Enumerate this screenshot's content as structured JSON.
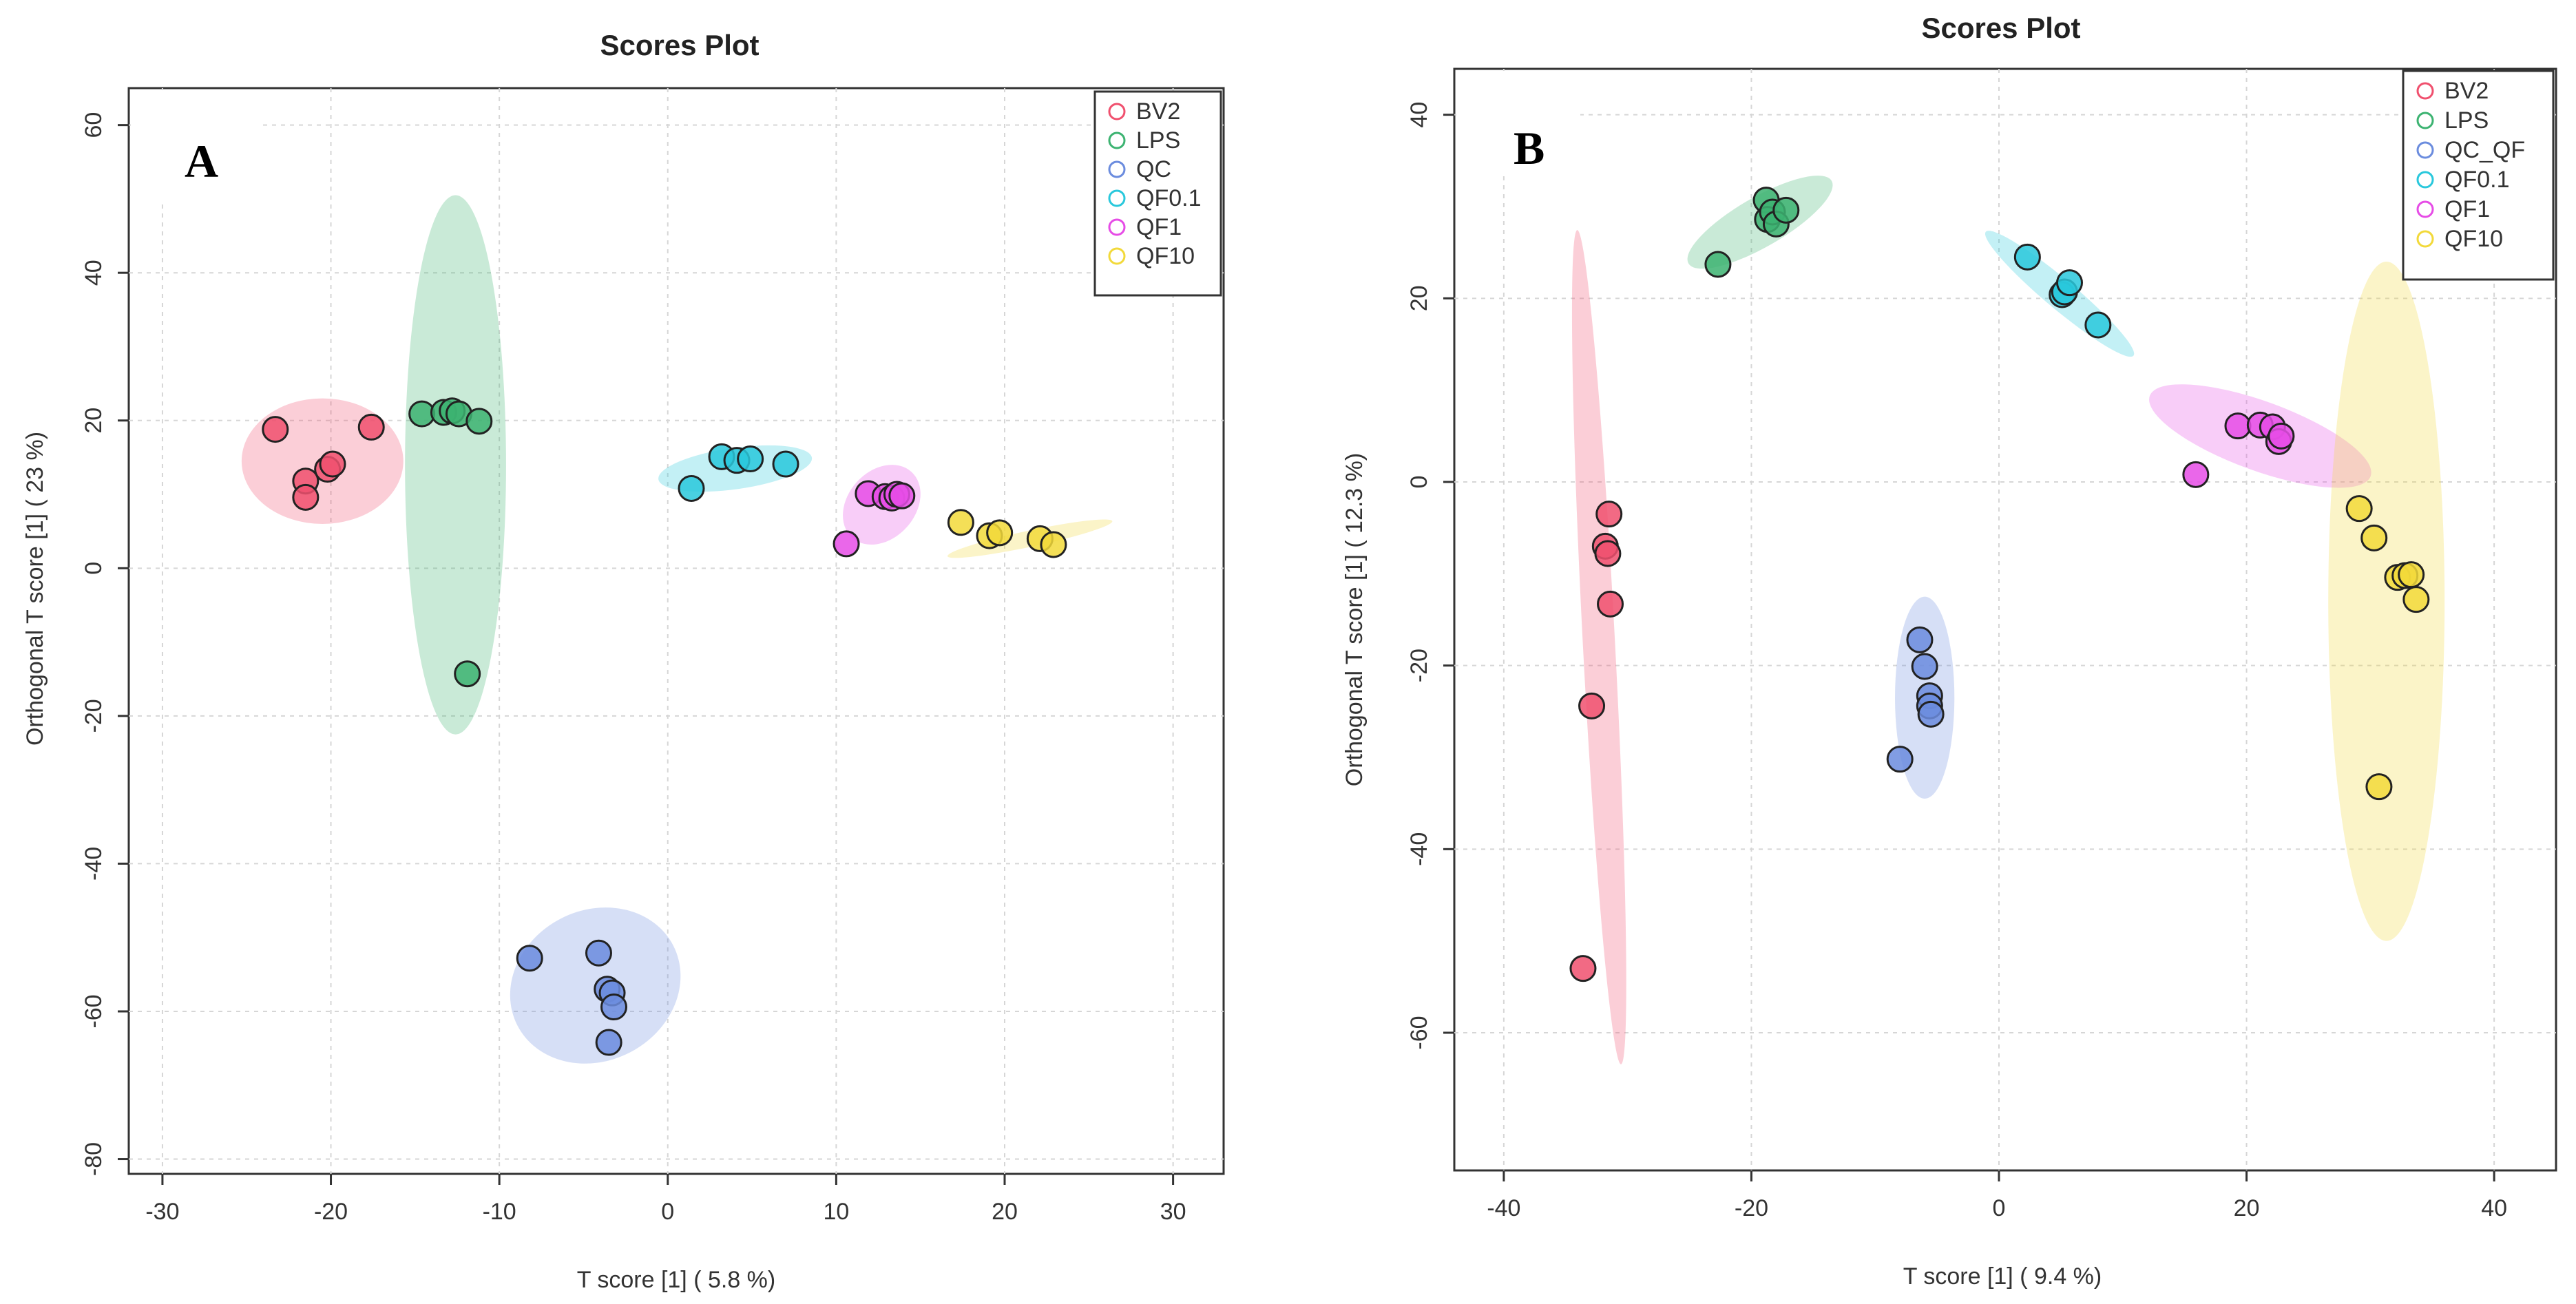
{
  "chart_data": [
    {
      "type": "scatter",
      "panel_label": "A",
      "title": "Scores Plot",
      "xlabel": "T score [1] ( 5.8 %)",
      "ylabel": "Orthogonal T score [1] ( 23 %)",
      "xlim": [
        -32,
        33
      ],
      "ylim": [
        -82,
        65
      ],
      "xticks": [
        -30,
        -20,
        -10,
        0,
        10,
        20,
        30
      ],
      "yticks": [
        60,
        40,
        20,
        0,
        -20,
        -40,
        -60,
        -80
      ],
      "grid": true,
      "legend": "top-right",
      "series": [
        {
          "name": "BV2",
          "color": "#f0506e",
          "points": [
            [
              -23.3,
              18.8
            ],
            [
              -21.5,
              11.8
            ],
            [
              -21.5,
              9.6
            ],
            [
              -20.2,
              13.4
            ],
            [
              -19.9,
              14.1
            ],
            [
              -17.6,
              19.1
            ]
          ],
          "ellipse": {
            "cx": -20.5,
            "cy": 14.5,
            "rx": 4.8,
            "ry": 8.5,
            "angle": 0
          }
        },
        {
          "name": "LPS",
          "color": "#3cb371",
          "points": [
            [
              -14.6,
              20.9
            ],
            [
              -13.3,
              21.1
            ],
            [
              -12.8,
              21.3
            ],
            [
              -12.4,
              20.9
            ],
            [
              -11.2,
              19.9
            ],
            [
              -11.9,
              -14.3
            ]
          ],
          "ellipse": {
            "cx": -12.6,
            "cy": 14.0,
            "rx": 3.0,
            "ry": 36.5,
            "angle": 0
          }
        },
        {
          "name": "QC",
          "color": "#6b8cde",
          "points": [
            [
              -8.2,
              -52.8
            ],
            [
              -4.1,
              -52.1
            ],
            [
              -3.6,
              -57.0
            ],
            [
              -3.3,
              -57.5
            ],
            [
              -3.2,
              -59.4
            ],
            [
              -3.5,
              -64.2
            ]
          ],
          "ellipse": {
            "cx": -4.3,
            "cy": -56.5,
            "rx": 5.2,
            "ry": 10.2,
            "angle": -27
          }
        },
        {
          "name": "QF0.1",
          "color": "#29c8dc",
          "points": [
            [
              1.4,
              10.8
            ],
            [
              3.2,
              15.1
            ],
            [
              4.1,
              14.6
            ],
            [
              4.9,
              14.8
            ],
            [
              7.0,
              14.1
            ]
          ],
          "ellipse": {
            "cx": 4.0,
            "cy": 13.5,
            "rx": 4.6,
            "ry": 2.8,
            "angle": -8
          }
        },
        {
          "name": "QF1",
          "color": "#e64ce6",
          "points": [
            [
              10.6,
              3.3
            ],
            [
              11.9,
              10.1
            ],
            [
              12.9,
              9.7
            ],
            [
              13.3,
              9.5
            ],
            [
              13.6,
              10.0
            ],
            [
              13.9,
              9.8
            ]
          ],
          "ellipse": {
            "cx": 12.7,
            "cy": 8.6,
            "rx": 2.0,
            "ry": 6.0,
            "angle": 42
          }
        },
        {
          "name": "QF10",
          "color": "#f2d93a",
          "points": [
            [
              17.4,
              6.2
            ],
            [
              19.1,
              4.4
            ],
            [
              19.7,
              4.8
            ],
            [
              22.1,
              4.0
            ],
            [
              22.9,
              3.2
            ]
          ],
          "ellipse": {
            "cx": 21.5,
            "cy": 4.0,
            "rx": 5.0,
            "ry": 1.1,
            "angle": -12
          }
        }
      ]
    },
    {
      "type": "scatter",
      "panel_label": "B",
      "title": "Scores Plot",
      "xlabel": "T score [1] ( 9.4 %)",
      "ylabel": "Orthogonal T score [1] ( 12.3 %)",
      "xlim": [
        -44,
        45
      ],
      "ylim": [
        -75,
        45
      ],
      "xticks": [
        -40,
        -20,
        0,
        20,
        40
      ],
      "yticks": [
        40,
        20,
        0,
        -20,
        -40,
        -60
      ],
      "grid": true,
      "legend": "top-right",
      "series": [
        {
          "name": "BV2",
          "color": "#f0506e",
          "points": [
            [
              -31.5,
              -3.5
            ],
            [
              -31.8,
              -7.0
            ],
            [
              -31.6,
              -7.8
            ],
            [
              -31.4,
              -13.3
            ],
            [
              -32.9,
              -24.4
            ],
            [
              -33.6,
              -53.0
            ]
          ],
          "ellipse": {
            "cx": -32.3,
            "cy": -18.0,
            "rx": 1.3,
            "ry": 45.5,
            "angle": -3
          }
        },
        {
          "name": "LPS",
          "color": "#3cb371",
          "points": [
            [
              -22.7,
              23.7
            ],
            [
              -18.8,
              30.7
            ],
            [
              -18.7,
              28.6
            ],
            [
              -18.3,
              29.4
            ],
            [
              -18.0,
              28.1
            ],
            [
              -17.2,
              29.6
            ]
          ],
          "ellipse": {
            "cx": -19.3,
            "cy": 28.3,
            "rx": 2.0,
            "ry": 9.0,
            "angle": 60
          }
        },
        {
          "name": "QC_QF",
          "color": "#6b8cde",
          "points": [
            [
              -6.4,
              -17.2
            ],
            [
              -6.0,
              -20.1
            ],
            [
              -5.6,
              -23.3
            ],
            [
              -5.6,
              -24.4
            ],
            [
              -5.5,
              -25.3
            ],
            [
              -8.0,
              -30.2
            ]
          ],
          "ellipse": {
            "cx": -6.0,
            "cy": -23.5,
            "rx": 2.4,
            "ry": 11.0,
            "angle": 0
          }
        },
        {
          "name": "QF0.1",
          "color": "#29c8dc",
          "points": [
            [
              2.3,
              24.5
            ],
            [
              5.1,
              20.4
            ],
            [
              5.3,
              20.7
            ],
            [
              5.7,
              21.7
            ],
            [
              8.0,
              17.1
            ]
          ],
          "ellipse": {
            "cx": 4.9,
            "cy": 20.5,
            "rx": 1.2,
            "ry": 10.5,
            "angle": -50
          }
        },
        {
          "name": "QF1",
          "color": "#e64ce6",
          "points": [
            [
              15.9,
              0.8
            ],
            [
              19.3,
              6.1
            ],
            [
              21.1,
              6.2
            ],
            [
              22.1,
              6.0
            ],
            [
              22.6,
              4.4
            ],
            [
              22.8,
              5.0
            ]
          ],
          "ellipse": {
            "cx": 21.1,
            "cy": 5.0,
            "rx": 2.8,
            "ry": 12.8,
            "angle": -70
          }
        },
        {
          "name": "QF10",
          "color": "#f2d93a",
          "points": [
            [
              29.1,
              -2.9
            ],
            [
              30.3,
              -6.1
            ],
            [
              32.2,
              -10.4
            ],
            [
              32.8,
              -10.2
            ],
            [
              33.3,
              -10.1
            ],
            [
              33.7,
              -12.8
            ],
            [
              30.7,
              -33.2
            ]
          ],
          "ellipse": {
            "cx": 31.3,
            "cy": -13.0,
            "rx": 4.7,
            "ry": 37.0,
            "angle": 0
          }
        }
      ]
    }
  ]
}
